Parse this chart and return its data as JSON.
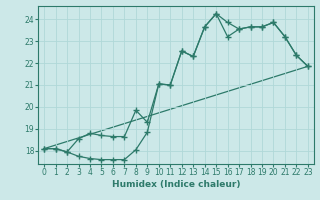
{
  "xlabel": "Humidex (Indice chaleur)",
  "ylabel": "",
  "bg_color": "#cce8e8",
  "line_color": "#2d7a6a",
  "grid_color": "#b0d8d8",
  "xlim": [
    -0.5,
    23.5
  ],
  "ylim": [
    17.4,
    24.6
  ],
  "xticks": [
    0,
    1,
    2,
    3,
    4,
    5,
    6,
    7,
    8,
    9,
    10,
    11,
    12,
    13,
    14,
    15,
    16,
    17,
    18,
    19,
    20,
    21,
    22,
    23
  ],
  "yticks": [
    18,
    19,
    20,
    21,
    22,
    23,
    24
  ],
  "line1_x": [
    0,
    1,
    2,
    3,
    4,
    5,
    6,
    7,
    8,
    9,
    10,
    11,
    12,
    13,
    14,
    15,
    16,
    17,
    18,
    19,
    20,
    21,
    22,
    23
  ],
  "line1_y": [
    18.1,
    18.1,
    17.95,
    17.75,
    17.65,
    17.6,
    17.6,
    17.6,
    18.05,
    18.85,
    21.05,
    21.0,
    22.55,
    22.3,
    23.65,
    24.25,
    23.2,
    23.55,
    23.65,
    23.65,
    23.85,
    23.2,
    22.35,
    21.85
  ],
  "line2_x": [
    0,
    1,
    2,
    3,
    4,
    5,
    6,
    7,
    8,
    9,
    10,
    11,
    12,
    13,
    14,
    15,
    16,
    17,
    18,
    19,
    20,
    21,
    22,
    23
  ],
  "line2_y": [
    18.1,
    18.1,
    17.95,
    18.55,
    18.8,
    18.7,
    18.65,
    18.65,
    19.85,
    19.3,
    21.05,
    21.0,
    22.55,
    22.3,
    23.65,
    24.25,
    23.85,
    23.55,
    23.65,
    23.65,
    23.85,
    23.2,
    22.35,
    21.85
  ],
  "line3_x": [
    0,
    23
  ],
  "line3_y": [
    18.1,
    21.85
  ],
  "marker": "+",
  "markersize": 4.0,
  "linewidth": 0.9,
  "axis_fontsize": 6.5,
  "tick_fontsize": 5.5
}
